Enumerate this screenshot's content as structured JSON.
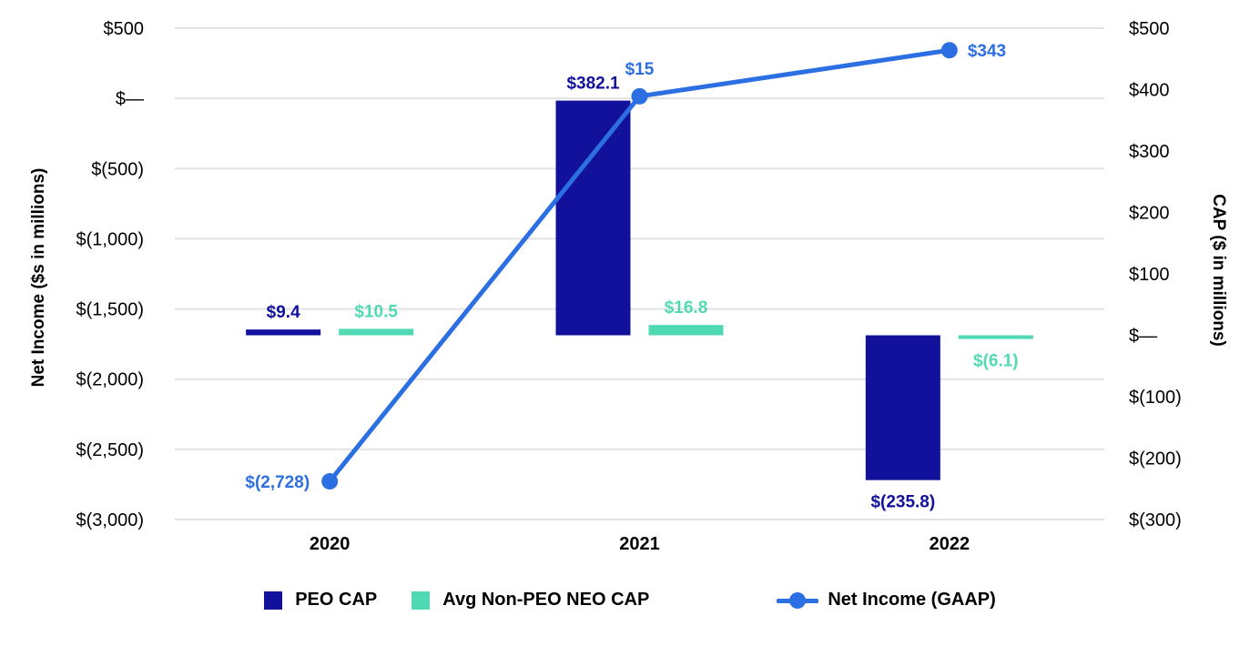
{
  "chart_data": {
    "type": "combo-bar-line",
    "title": "",
    "categories": [
      "2020",
      "2021",
      "2022"
    ],
    "series": [
      {
        "name": "PEO CAP",
        "type": "bar",
        "axis": "right",
        "color": "#11119B",
        "values": [
          9.4,
          382.1,
          -235.8
        ],
        "data_labels": [
          "$9.4",
          "$382.1",
          "$(235.8)"
        ]
      },
      {
        "name": "Avg Non-PEO NEO CAP",
        "type": "bar",
        "axis": "right",
        "color": "#50D9B3",
        "values": [
          10.5,
          16.8,
          -6.1
        ],
        "data_labels": [
          "$10.5",
          "$16.8",
          "$(6.1)"
        ]
      },
      {
        "name": "Net Income (GAAP)",
        "type": "line",
        "axis": "left",
        "color": "#2C6FE2",
        "values": [
          -2728,
          15,
          343
        ],
        "data_labels": [
          "$(2,728)",
          "$15",
          "$343"
        ],
        "label_placement": [
          "left",
          "above",
          "right"
        ]
      }
    ],
    "left_axis": {
      "title": "Net Income ($s in millions)",
      "min": -3000,
      "max": 500,
      "tick_values": [
        500,
        0,
        -500,
        -1000,
        -1500,
        -2000,
        -2500,
        -3000
      ],
      "tick_labels": [
        "$500",
        "$—",
        "$(500)",
        "$(1,000)",
        "$(1,500)",
        "$(2,000)",
        "$(2,500)",
        "$(3,000)"
      ]
    },
    "right_axis": {
      "title": "CAP ($ in millions)",
      "min": -300,
      "max": 500,
      "tick_values": [
        500,
        400,
        300,
        200,
        100,
        0,
        -100,
        -200,
        -300
      ],
      "tick_labels": [
        "$500",
        "$400",
        "$300",
        "$200",
        "$100",
        "$—",
        "$(100)",
        "$(200)",
        "$(300)"
      ]
    },
    "grid": {
      "horizontal": true,
      "color": "#E2E2E2"
    },
    "legend": {
      "position": "bottom",
      "entries": [
        "PEO CAP",
        "Avg Non-PEO NEO CAP",
        "Net Income (GAAP)"
      ]
    },
    "background": "#FFFFFF"
  }
}
